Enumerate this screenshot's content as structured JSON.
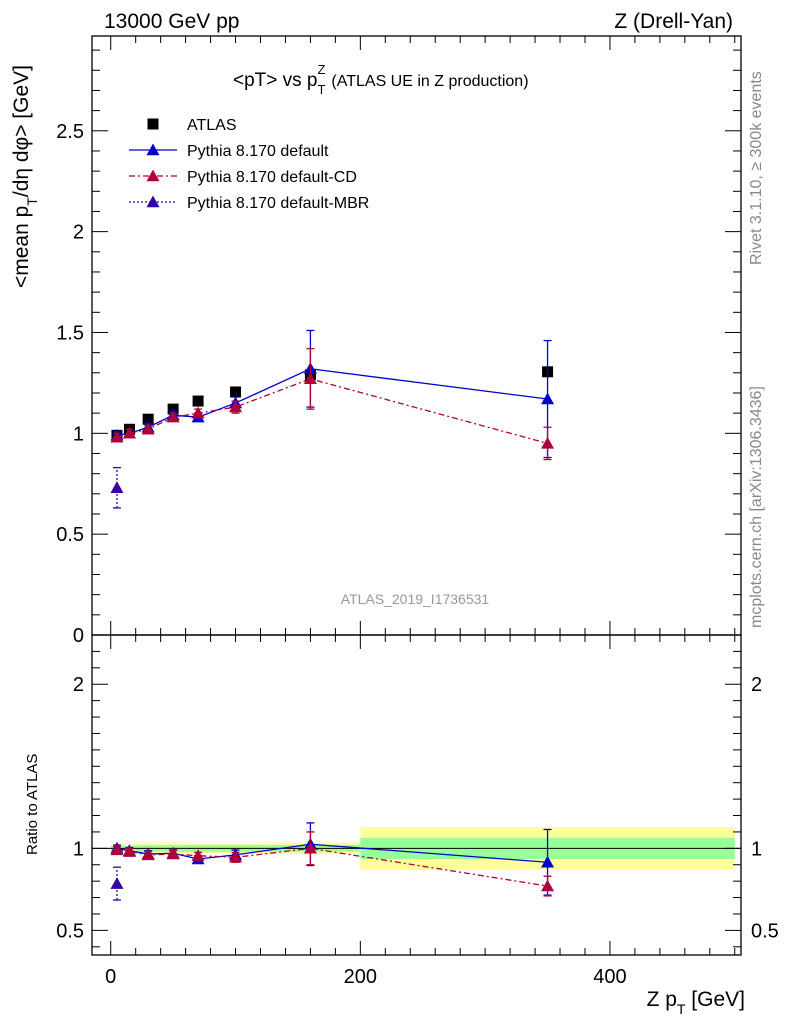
{
  "header": {
    "left": "13000 GeV pp",
    "right": "Z (Drell-Yan)"
  },
  "side_labels": {
    "rivet": "Rivet 3.1.10, ≥ 300k events",
    "mcplots": "mcplots.cern.ch [arXiv:1306.3436]"
  },
  "chart_data": [
    {
      "type": "scatter",
      "panel": "main",
      "title": "<pT> vs p_T^Z (ATLAS UE in Z production)",
      "title_main": "<pT> vs p",
      "title_sup": "Z",
      "title_sub": "T",
      "title_rest": "(ATLAS UE in Z production)",
      "ylabel": "<mean p_T/dη dφ> [GeV]",
      "ylabel_parts": {
        "a": "<mean p",
        "sub": "T",
        "b": "/dη dφ> [GeV]"
      },
      "watermark": "ATLAS_2019_I1736531",
      "xlim": [
        -15,
        505
      ],
      "ylim": [
        0,
        2.97
      ],
      "yticks": [
        "0",
        "0.5",
        "1",
        "1.5",
        "2",
        "2.5"
      ],
      "ytick_values": [
        0,
        0.5,
        1,
        1.5,
        2,
        2.5
      ],
      "legend_position": "top-left",
      "legend": [
        "ATLAS",
        "Pythia 8.170 default",
        "Pythia 8.170 default-CD",
        "Pythia 8.170 default-MBR"
      ],
      "series": [
        {
          "name": "ATLAS",
          "color": "#000000",
          "marker": "square",
          "line": "none",
          "x": [
            5,
            15,
            30,
            50,
            70,
            100,
            160,
            350
          ],
          "y": [
            0.99,
            1.02,
            1.07,
            1.12,
            1.16,
            1.205,
            1.29,
            1.305
          ]
        },
        {
          "name": "Pythia 8.170 default",
          "color": "#0000cc",
          "marker": "triangle",
          "line": "solid",
          "x": [
            5,
            15,
            30,
            50,
            70,
            100,
            160,
            350
          ],
          "y": [
            0.99,
            1.0,
            1.03,
            1.09,
            1.08,
            1.15,
            1.32,
            1.17
          ],
          "yerr": [
            0.02,
            0.02,
            0.02,
            0.02,
            0.02,
            0.03,
            0.19,
            0.29
          ]
        },
        {
          "name": "Pythia 8.170 default-CD",
          "color": "#b00038",
          "marker": "triangle",
          "line": "dashdot",
          "x": [
            5,
            15,
            30,
            50,
            70,
            100,
            160,
            350
          ],
          "y": [
            0.98,
            1.0,
            1.02,
            1.08,
            1.1,
            1.13,
            1.27,
            0.95
          ],
          "yerr": [
            0.02,
            0.02,
            0.02,
            0.02,
            0.02,
            0.03,
            0.15,
            0.08
          ]
        },
        {
          "name": "Pythia 8.170 default-MBR",
          "color": "#3300aa",
          "marker": "triangle",
          "line": "dotted",
          "x": [
            5
          ],
          "y": [
            0.73
          ],
          "yerr": [
            0.1
          ]
        }
      ]
    },
    {
      "type": "scatter",
      "panel": "ratio",
      "ylabel": "Ratio to ATLAS",
      "xlabel": "Z p_T [GeV]",
      "xlabel_parts": {
        "a": "Z p",
        "sub": "T",
        "b": " [GeV]"
      },
      "xlim": [
        -15,
        505
      ],
      "ylim": [
        0.35,
        2.3
      ],
      "yticks": [
        "0.5",
        "1",
        "2"
      ],
      "ytick_values": [
        0.5,
        1,
        2
      ],
      "xticks": [
        "0",
        "200",
        "400"
      ],
      "xtick_values": [
        0,
        200,
        400
      ],
      "bands": [
        {
          "x0": 0,
          "x1": 10,
          "green": [
            0.985,
            1.015
          ],
          "yellow": [
            0.975,
            1.025
          ]
        },
        {
          "x0": 10,
          "x1": 20,
          "green": [
            0.985,
            1.015
          ],
          "yellow": [
            0.975,
            1.025
          ]
        },
        {
          "x0": 20,
          "x1": 40,
          "green": [
            0.98,
            1.02
          ],
          "yellow": [
            0.965,
            1.035
          ]
        },
        {
          "x0": 40,
          "x1": 60,
          "green": [
            0.98,
            1.02
          ],
          "yellow": [
            0.965,
            1.035
          ]
        },
        {
          "x0": 60,
          "x1": 80,
          "green": [
            0.98,
            1.02
          ],
          "yellow": [
            0.97,
            1.03
          ]
        },
        {
          "x0": 80,
          "x1": 120,
          "green": [
            0.98,
            1.02
          ],
          "yellow": [
            0.97,
            1.03
          ]
        },
        {
          "x0": 120,
          "x1": 200,
          "green": [
            0.98,
            1.02
          ],
          "yellow": [
            0.965,
            1.035
          ]
        },
        {
          "x0": 200,
          "x1": 500,
          "green": [
            0.935,
            1.065
          ],
          "yellow": [
            0.87,
            1.13
          ]
        }
      ],
      "series": [
        {
          "name": "Pythia 8.170 default",
          "color": "#0000cc",
          "marker": "triangle",
          "line": "solid",
          "x": [
            5,
            15,
            30,
            50,
            70,
            100,
            160,
            350
          ],
          "y": [
            1.0,
            0.985,
            0.965,
            0.97,
            0.935,
            0.96,
            1.025,
            0.915
          ],
          "yerr": [
            0.02,
            0.02,
            0.02,
            0.02,
            0.02,
            0.03,
            0.13,
            0.2
          ]
        },
        {
          "name": "Pythia 8.170 default-CD",
          "color": "#b00038",
          "marker": "triangle",
          "line": "dashdot",
          "x": [
            5,
            15,
            30,
            50,
            70,
            100,
            160,
            350
          ],
          "y": [
            0.99,
            0.98,
            0.96,
            0.965,
            0.955,
            0.945,
            1.0,
            0.77
          ],
          "yerr": [
            0.02,
            0.02,
            0.02,
            0.02,
            0.02,
            0.03,
            0.1,
            0.06
          ]
        },
        {
          "name": "Pythia 8.170 default-MBR",
          "color": "#3300aa",
          "marker": "triangle",
          "line": "dotted",
          "x": [
            5
          ],
          "y": [
            0.785
          ],
          "yerr": [
            0.1
          ]
        }
      ]
    }
  ]
}
